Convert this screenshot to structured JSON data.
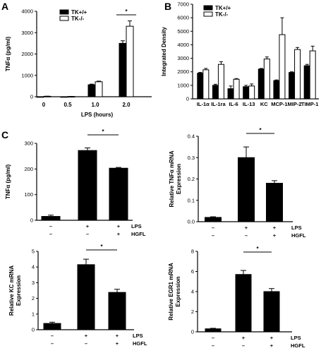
{
  "panels": {
    "A": {
      "letter": "A"
    },
    "B": {
      "letter": "B"
    },
    "C": {
      "letter": "C"
    }
  },
  "chart_data": [
    {
      "id": "A",
      "type": "bar",
      "ylabel": "TNFα (pg/ml)",
      "xlabel": "LPS (hours)",
      "categories": [
        "0",
        "0.5",
        "1.0",
        "2.0"
      ],
      "ylim": [
        0,
        4000
      ],
      "yticks": [
        0,
        1000,
        2000,
        3000,
        4000
      ],
      "legend": {
        "placement": "top-left",
        "entries": [
          "TK+/+",
          "TK-/-"
        ]
      },
      "series": [
        {
          "name": "TK+/+",
          "color": "#000000",
          "values": [
            0,
            0,
            560,
            2500
          ],
          "errors": [
            0,
            0,
            30,
            120
          ]
        },
        {
          "name": "TK-/-",
          "color": "#ffffff",
          "values": [
            20,
            10,
            700,
            3300
          ],
          "errors": [
            5,
            5,
            30,
            250
          ]
        }
      ],
      "significance": [
        {
          "category": "2.0",
          "label": "*"
        }
      ]
    },
    {
      "id": "B",
      "type": "bar",
      "ylabel": "Integrated Density",
      "categories": [
        "IL-1α",
        "IL-1ra",
        "IL-6",
        "IL-13",
        "KC",
        "MCP-1",
        "MIP-2",
        "TIMP-1"
      ],
      "ylim": [
        0,
        7000
      ],
      "yticks": [
        0,
        1000,
        2000,
        3000,
        4000,
        5000,
        6000,
        7000
      ],
      "legend": {
        "placement": "top-left",
        "entries": [
          "TK+/+",
          "TK-/-"
        ]
      },
      "series": [
        {
          "name": "TK+/+",
          "color": "#000000",
          "values": [
            1900,
            1000,
            750,
            900,
            2200,
            1350,
            1950,
            2450
          ],
          "errors": [
            60,
            80,
            200,
            100,
            50,
            50,
            50,
            100
          ]
        },
        {
          "name": "TK-/-",
          "color": "#ffffff",
          "values": [
            2150,
            2550,
            1450,
            950,
            2950,
            4750,
            3650,
            3550
          ],
          "errors": [
            100,
            200,
            50,
            150,
            150,
            1250,
            150,
            350
          ]
        }
      ]
    },
    {
      "id": "C1",
      "type": "bar",
      "ylabel": "TNFα (pg/ml)",
      "ylim": [
        0,
        300
      ],
      "yticks": [
        0,
        100,
        200,
        300
      ],
      "values": [
        15,
        272,
        203
      ],
      "errors": [
        5,
        10,
        3
      ],
      "lps": [
        "–",
        "+",
        "+"
      ],
      "hgfl": [
        "–",
        "–",
        "+"
      ],
      "lps_label": "LPS",
      "hgfl_label": "HGFL",
      "significance": [
        {
          "from": 1,
          "to": 2,
          "label": "*"
        }
      ]
    },
    {
      "id": "C2",
      "type": "bar",
      "ylabel": "Relative TNFα mRNA Expression",
      "ylim": [
        0,
        0.4
      ],
      "yticks": [
        0.0,
        0.1,
        0.2,
        0.3,
        0.4
      ],
      "values": [
        0.02,
        0.3,
        0.18
      ],
      "errors": [
        0.003,
        0.05,
        0.012
      ],
      "lps": [
        "–",
        "+",
        "+"
      ],
      "hgfl": [
        "–",
        "–",
        "+"
      ],
      "lps_label": "LPS",
      "hgfl_label": "HGFL",
      "significance": [
        {
          "from": 1,
          "to": 2,
          "label": "*"
        }
      ]
    },
    {
      "id": "C3",
      "type": "bar",
      "ylabel": "Relative KC mRNA Expression",
      "ylim": [
        0,
        5
      ],
      "yticks": [
        0,
        1,
        2,
        3,
        4,
        5
      ],
      "values": [
        0.4,
        4.15,
        2.38
      ],
      "errors": [
        0.08,
        0.35,
        0.2
      ],
      "lps": [
        "–",
        "+",
        "+"
      ],
      "hgfl": [
        "–",
        "–",
        "+"
      ],
      "lps_label": "LPS",
      "hgfl_label": "HGFL",
      "significance": [
        {
          "from": 1,
          "to": 2,
          "label": "*"
        }
      ]
    },
    {
      "id": "C4",
      "type": "bar",
      "ylabel": "Relative EGR1 mRNA Expression",
      "ylim": [
        0,
        8
      ],
      "yticks": [
        0,
        2,
        4,
        6,
        8
      ],
      "values": [
        0.3,
        5.7,
        4.0
      ],
      "errors": [
        0.05,
        0.4,
        0.3
      ],
      "lps": [
        "–",
        "+",
        "+"
      ],
      "hgfl": [
        "–",
        "–",
        "+"
      ],
      "lps_label": "LPS",
      "hgfl_label": "HGFL",
      "significance": [
        {
          "from": 1,
          "to": 2,
          "label": "*"
        }
      ]
    }
  ]
}
